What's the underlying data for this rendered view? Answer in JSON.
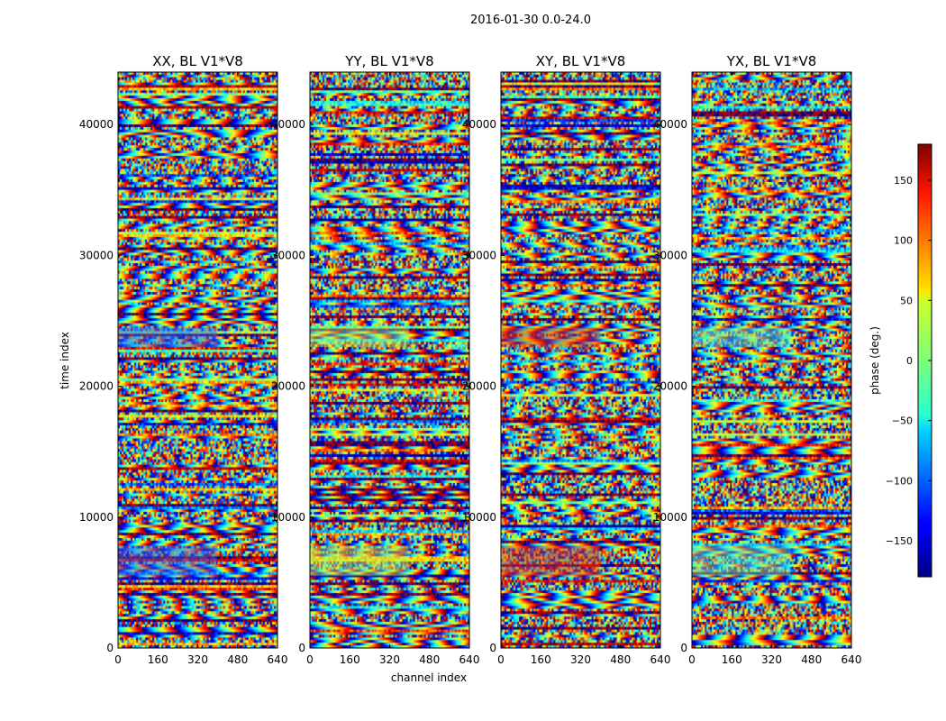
{
  "figure": {
    "suptitle": "2016-01-30 0.0-24.0"
  },
  "chart_data": {
    "type": "heatmap",
    "title": "2016-01-30 0.0-24.0",
    "xlabel": "channel index",
    "ylabel": "time index",
    "xlim": [
      0,
      640
    ],
    "ylim": [
      0,
      44000
    ],
    "xticks": [
      0,
      160,
      320,
      480,
      640
    ],
    "yticks": [
      0,
      10000,
      20000,
      30000,
      40000
    ],
    "colormap": "jet",
    "panels": [
      {
        "title": "XX, BL V1*V8",
        "tint": "#2a60ff"
      },
      {
        "title": "YY, BL V1*V8",
        "tint": "#b8f060"
      },
      {
        "title": "XY, BL V1*V8",
        "tint": "#e03020"
      },
      {
        "title": "YX, BL V1*V8",
        "tint": "#60f0c0"
      }
    ],
    "colorbar": {
      "label": "phase (deg.)",
      "range": [
        -180,
        180
      ],
      "ticks": [
        -150,
        -100,
        -50,
        0,
        50,
        100,
        150
      ]
    }
  }
}
